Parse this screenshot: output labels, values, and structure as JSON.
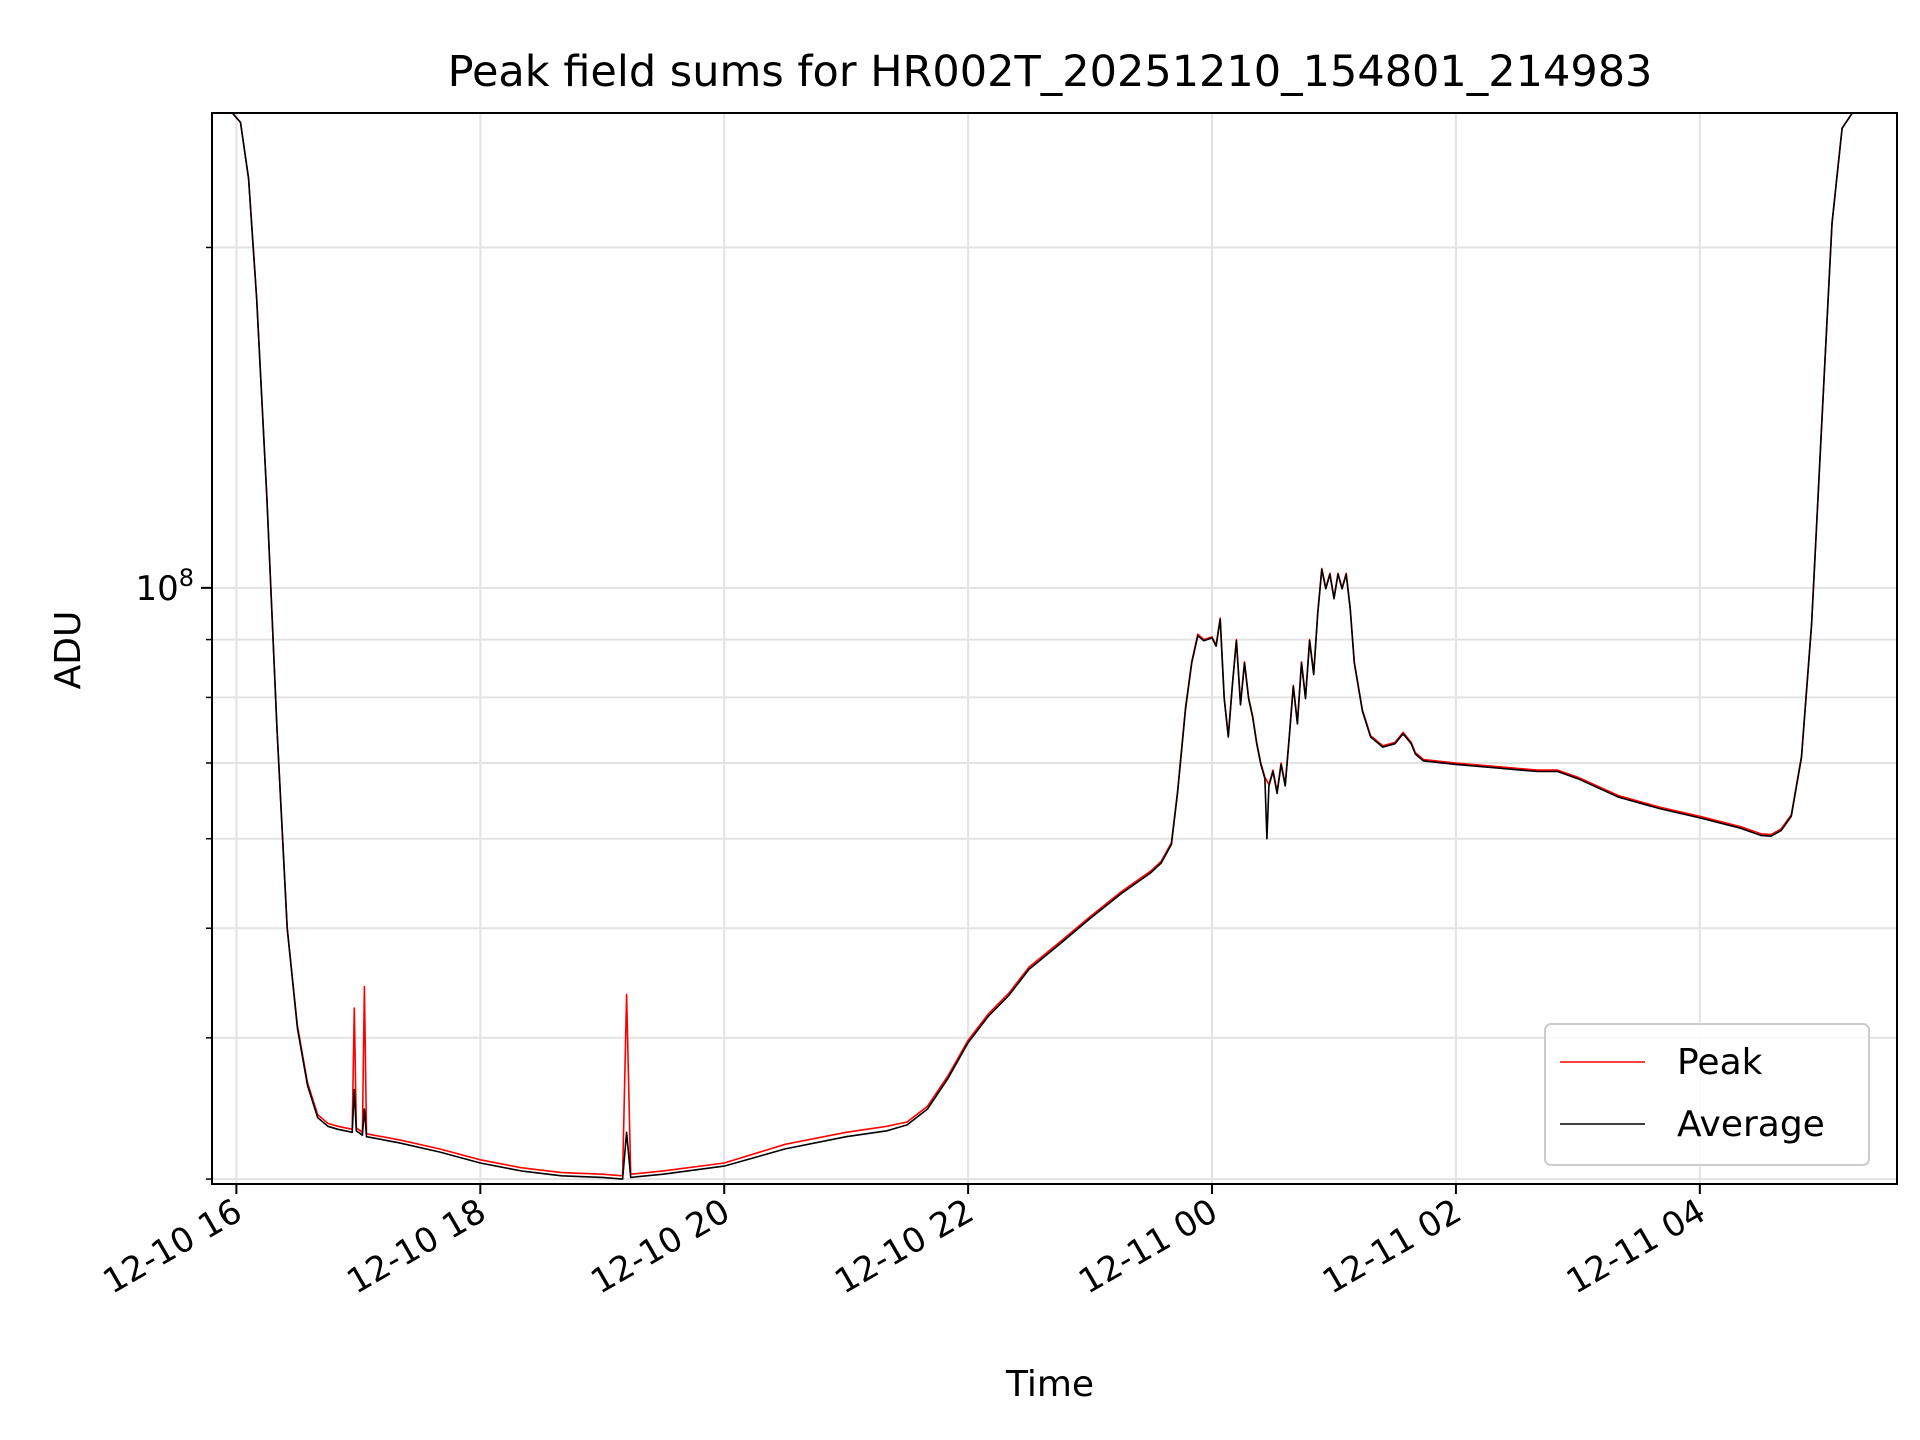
{
  "chart_data": {
    "type": "line",
    "title": "Peak field sums for HR002T_20251210_154801_214983",
    "xlabel": "Time",
    "ylabel": "ADU",
    "y_scale": "log",
    "y_tick_labels": [
      {
        "value": 100000000,
        "base": "10",
        "exp": "8"
      }
    ],
    "y_minor_ticks": [
      30000000,
      40000000,
      50000000,
      60000000,
      70000000,
      80000000,
      90000000,
      200000000
    ],
    "x_ticks": [
      {
        "t": "2025-12-10 16:00",
        "label": "12-10 16"
      },
      {
        "t": "2025-12-10 18:00",
        "label": "12-10 18"
      },
      {
        "t": "2025-12-10 20:00",
        "label": "12-10 20"
      },
      {
        "t": "2025-12-10 22:00",
        "label": "12-10 22"
      },
      {
        "t": "2025-12-11 00:00",
        "label": "12-11 00"
      },
      {
        "t": "2025-12-11 02:00",
        "label": "12-11 02"
      },
      {
        "t": "2025-12-11 04:00",
        "label": "12-11 04"
      }
    ],
    "xlim": [
      "2025-12-10 15:48",
      "2025-12-11 05:37"
    ],
    "ylim": [
      29700000,
      263000000
    ],
    "grid": true,
    "legend_position": "lower-right",
    "series": [
      {
        "name": "Peak",
        "color": "#ff0000",
        "points": [
          [
            "2025-12-10 15:48",
            263000000
          ],
          [
            "2025-12-10 15:58",
            263000000
          ],
          [
            "2025-12-10 16:02",
            258000000
          ],
          [
            "2025-12-10 16:06",
            230000000
          ],
          [
            "2025-12-10 16:10",
            180000000
          ],
          [
            "2025-12-10 16:15",
            120000000
          ],
          [
            "2025-12-10 16:20",
            75000000
          ],
          [
            "2025-12-10 16:25",
            50000000
          ],
          [
            "2025-12-10 16:30",
            41000000
          ],
          [
            "2025-12-10 16:35",
            36500000
          ],
          [
            "2025-12-10 16:40",
            34200000
          ],
          [
            "2025-12-10 16:45",
            33600000
          ],
          [
            "2025-12-10 16:50",
            33400000
          ],
          [
            "2025-12-10 16:57",
            33200000
          ],
          [
            "2025-12-10 16:58",
            42500000
          ],
          [
            "2025-12-10 16:59",
            33300000
          ],
          [
            "2025-12-10 17:02",
            33000000
          ],
          [
            "2025-12-10 17:03",
            44400000
          ],
          [
            "2025-12-10 17:04",
            32900000
          ],
          [
            "2025-12-10 17:20",
            32500000
          ],
          [
            "2025-12-10 17:40",
            31900000
          ],
          [
            "2025-12-10 18:00",
            31200000
          ],
          [
            "2025-12-10 18:20",
            30700000
          ],
          [
            "2025-12-10 18:40",
            30400000
          ],
          [
            "2025-12-10 19:00",
            30300000
          ],
          [
            "2025-12-10 19:10",
            30200000
          ],
          [
            "2025-12-10 19:12",
            43700000
          ],
          [
            "2025-12-10 19:14",
            30300000
          ],
          [
            "2025-12-10 19:30",
            30500000
          ],
          [
            "2025-12-10 20:00",
            31000000
          ],
          [
            "2025-12-10 20:30",
            32200000
          ],
          [
            "2025-12-10 21:00",
            33000000
          ],
          [
            "2025-12-10 21:20",
            33400000
          ],
          [
            "2025-12-10 21:30",
            33700000
          ],
          [
            "2025-12-10 21:40",
            34800000
          ],
          [
            "2025-12-10 21:50",
            37000000
          ],
          [
            "2025-12-10 22:00",
            39800000
          ],
          [
            "2025-12-10 22:10",
            42000000
          ],
          [
            "2025-12-10 22:20",
            43800000
          ],
          [
            "2025-12-10 22:30",
            46200000
          ],
          [
            "2025-12-10 22:45",
            48600000
          ],
          [
            "2025-12-10 23:00",
            51200000
          ],
          [
            "2025-12-10 23:15",
            53800000
          ],
          [
            "2025-12-10 23:30",
            56200000
          ],
          [
            "2025-12-10 23:35",
            57300000
          ],
          [
            "2025-12-10 23:40",
            59500000
          ],
          [
            "2025-12-10 23:43",
            66000000
          ],
          [
            "2025-12-10 23:47",
            78500000
          ],
          [
            "2025-12-10 23:50",
            86000000
          ],
          [
            "2025-12-10 23:53",
            91000000
          ],
          [
            "2025-12-10 23:56",
            90000000
          ],
          [
            "2025-12-11 00:00",
            90500000
          ],
          [
            "2025-12-11 00:02",
            89000000
          ],
          [
            "2025-12-11 00:04",
            94000000
          ],
          [
            "2025-12-11 00:06",
            80000000
          ],
          [
            "2025-12-11 00:08",
            74000000
          ],
          [
            "2025-12-11 00:10",
            82000000
          ],
          [
            "2025-12-11 00:12",
            90000000
          ],
          [
            "2025-12-11 00:14",
            79000000
          ],
          [
            "2025-12-11 00:16",
            86000000
          ],
          [
            "2025-12-11 00:18",
            80000000
          ],
          [
            "2025-12-11 00:20",
            77000000
          ],
          [
            "2025-12-11 00:22",
            73000000
          ],
          [
            "2025-12-11 00:24",
            70000000
          ],
          [
            "2025-12-11 00:26",
            68000000
          ],
          [
            "2025-12-11 00:28",
            67000000
          ],
          [
            "2025-12-11 00:30",
            69000000
          ],
          [
            "2025-12-11 00:32",
            66000000
          ],
          [
            "2025-12-11 00:34",
            70000000
          ],
          [
            "2025-12-11 00:36",
            67000000
          ],
          [
            "2025-12-11 00:38",
            74000000
          ],
          [
            "2025-12-11 00:40",
            82000000
          ],
          [
            "2025-12-11 00:42",
            76000000
          ],
          [
            "2025-12-11 00:44",
            86000000
          ],
          [
            "2025-12-11 00:46",
            80000000
          ],
          [
            "2025-12-11 00:48",
            90000000
          ],
          [
            "2025-12-11 00:50",
            84000000
          ],
          [
            "2025-12-11 00:52",
            95000000
          ],
          [
            "2025-12-11 00:54",
            104000000
          ],
          [
            "2025-12-11 00:56",
            100000000
          ],
          [
            "2025-12-11 00:58",
            103000000
          ],
          [
            "2025-12-11 01:00",
            98000000
          ],
          [
            "2025-12-11 01:02",
            103000000
          ],
          [
            "2025-12-11 01:04",
            100000000
          ],
          [
            "2025-12-11 01:06",
            103000000
          ],
          [
            "2025-12-11 01:08",
            96000000
          ],
          [
            "2025-12-11 01:10",
            86000000
          ],
          [
            "2025-12-11 01:14",
            78000000
          ],
          [
            "2025-12-11 01:18",
            74000000
          ],
          [
            "2025-12-11 01:24",
            72500000
          ],
          [
            "2025-12-11 01:30",
            73000000
          ],
          [
            "2025-12-11 01:34",
            74500000
          ],
          [
            "2025-12-11 01:38",
            73000000
          ],
          [
            "2025-12-11 01:40",
            71500000
          ],
          [
            "2025-12-11 01:44",
            70500000
          ],
          [
            "2025-12-11 02:00",
            70000000
          ],
          [
            "2025-12-11 02:20",
            69500000
          ],
          [
            "2025-12-11 02:40",
            69000000
          ],
          [
            "2025-12-11 02:50",
            69000000
          ],
          [
            "2025-12-11 03:00",
            68000000
          ],
          [
            "2025-12-11 03:20",
            65500000
          ],
          [
            "2025-12-11 03:40",
            64000000
          ],
          [
            "2025-12-11 04:00",
            62800000
          ],
          [
            "2025-12-11 04:20",
            61500000
          ],
          [
            "2025-12-11 04:30",
            60600000
          ],
          [
            "2025-12-11 04:35",
            60500000
          ],
          [
            "2025-12-11 04:40",
            61200000
          ],
          [
            "2025-12-11 04:45",
            63000000
          ],
          [
            "2025-12-11 04:50",
            71000000
          ],
          [
            "2025-12-11 04:55",
            93000000
          ],
          [
            "2025-12-11 05:00",
            140000000
          ],
          [
            "2025-12-11 05:05",
            210000000
          ],
          [
            "2025-12-11 05:10",
            255000000
          ],
          [
            "2025-12-11 05:15",
            263000000
          ],
          [
            "2025-12-11 05:37",
            263000000
          ]
        ]
      },
      {
        "name": "Average",
        "color": "#000000",
        "points": [
          [
            "2025-12-10 15:48",
            263000000
          ],
          [
            "2025-12-10 15:58",
            263000000
          ],
          [
            "2025-12-10 16:02",
            258000000
          ],
          [
            "2025-12-10 16:06",
            230000000
          ],
          [
            "2025-12-10 16:10",
            180000000
          ],
          [
            "2025-12-10 16:15",
            120000000
          ],
          [
            "2025-12-10 16:20",
            75000000
          ],
          [
            "2025-12-10 16:25",
            50000000
          ],
          [
            "2025-12-10 16:30",
            40800000
          ],
          [
            "2025-12-10 16:35",
            36300000
          ],
          [
            "2025-12-10 16:40",
            34000000
          ],
          [
            "2025-12-10 16:45",
            33400000
          ],
          [
            "2025-12-10 16:50",
            33200000
          ],
          [
            "2025-12-10 16:57",
            33000000
          ],
          [
            "2025-12-10 16:58",
            36000000
          ],
          [
            "2025-12-10 16:59",
            33100000
          ],
          [
            "2025-12-10 17:02",
            32800000
          ],
          [
            "2025-12-10 17:03",
            34600000
          ],
          [
            "2025-12-10 17:04",
            32700000
          ],
          [
            "2025-12-10 17:20",
            32300000
          ],
          [
            "2025-12-10 17:40",
            31700000
          ],
          [
            "2025-12-10 18:00",
            31000000
          ],
          [
            "2025-12-10 18:20",
            30500000
          ],
          [
            "2025-12-10 18:40",
            30200000
          ],
          [
            "2025-12-10 19:00",
            30100000
          ],
          [
            "2025-12-10 19:10",
            30000000
          ],
          [
            "2025-12-10 19:12",
            33000000
          ],
          [
            "2025-12-10 19:14",
            30100000
          ],
          [
            "2025-12-10 19:30",
            30300000
          ],
          [
            "2025-12-10 20:00",
            30800000
          ],
          [
            "2025-12-10 20:30",
            31900000
          ],
          [
            "2025-12-10 21:00",
            32700000
          ],
          [
            "2025-12-10 21:20",
            33100000
          ],
          [
            "2025-12-10 21:30",
            33500000
          ],
          [
            "2025-12-10 21:40",
            34600000
          ],
          [
            "2025-12-10 21:50",
            36800000
          ],
          [
            "2025-12-10 22:00",
            39600000
          ],
          [
            "2025-12-10 22:10",
            41800000
          ],
          [
            "2025-12-10 22:20",
            43600000
          ],
          [
            "2025-12-10 22:30",
            46000000
          ],
          [
            "2025-12-10 22:45",
            48400000
          ],
          [
            "2025-12-10 23:00",
            51000000
          ],
          [
            "2025-12-10 23:15",
            53600000
          ],
          [
            "2025-12-10 23:30",
            56000000
          ],
          [
            "2025-12-10 23:35",
            57100000
          ],
          [
            "2025-12-10 23:40",
            59300000
          ],
          [
            "2025-12-10 23:43",
            65800000
          ],
          [
            "2025-12-10 23:47",
            78200000
          ],
          [
            "2025-12-10 23:50",
            85800000
          ],
          [
            "2025-12-10 23:53",
            90700000
          ],
          [
            "2025-12-10 23:56",
            89800000
          ],
          [
            "2025-12-11 00:00",
            90300000
          ],
          [
            "2025-12-11 00:02",
            88800000
          ],
          [
            "2025-12-11 00:04",
            93800000
          ],
          [
            "2025-12-11 00:06",
            79800000
          ],
          [
            "2025-12-11 00:08",
            73800000
          ],
          [
            "2025-12-11 00:10",
            81800000
          ],
          [
            "2025-12-11 00:12",
            89800000
          ],
          [
            "2025-12-11 00:14",
            78800000
          ],
          [
            "2025-12-11 00:16",
            85800000
          ],
          [
            "2025-12-11 00:18",
            79800000
          ],
          [
            "2025-12-11 00:20",
            76800000
          ],
          [
            "2025-12-11 00:22",
            72800000
          ],
          [
            "2025-12-11 00:24",
            69800000
          ],
          [
            "2025-12-11 00:26",
            67800000
          ],
          [
            "2025-12-11 00:27",
            60000000
          ],
          [
            "2025-12-11 00:28",
            66800000
          ],
          [
            "2025-12-11 00:30",
            68800000
          ],
          [
            "2025-12-11 00:32",
            65800000
          ],
          [
            "2025-12-11 00:34",
            69800000
          ],
          [
            "2025-12-11 00:36",
            66800000
          ],
          [
            "2025-12-11 00:38",
            73800000
          ],
          [
            "2025-12-11 00:40",
            81800000
          ],
          [
            "2025-12-11 00:42",
            75800000
          ],
          [
            "2025-12-11 00:44",
            85800000
          ],
          [
            "2025-12-11 00:46",
            79800000
          ],
          [
            "2025-12-11 00:48",
            89800000
          ],
          [
            "2025-12-11 00:50",
            83800000
          ],
          [
            "2025-12-11 00:52",
            94800000
          ],
          [
            "2025-12-11 00:54",
            103800000
          ],
          [
            "2025-12-11 00:56",
            99800000
          ],
          [
            "2025-12-11 00:58",
            102800000
          ],
          [
            "2025-12-11 01:00",
            97800000
          ],
          [
            "2025-12-11 01:02",
            102800000
          ],
          [
            "2025-12-11 01:04",
            99800000
          ],
          [
            "2025-12-11 01:06",
            102800000
          ],
          [
            "2025-12-11 01:08",
            95800000
          ],
          [
            "2025-12-11 01:10",
            85800000
          ],
          [
            "2025-12-11 01:14",
            77800000
          ],
          [
            "2025-12-11 01:18",
            73800000
          ],
          [
            "2025-12-11 01:24",
            72300000
          ],
          [
            "2025-12-11 01:30",
            72800000
          ],
          [
            "2025-12-11 01:34",
            74300000
          ],
          [
            "2025-12-11 01:38",
            72800000
          ],
          [
            "2025-12-11 01:40",
            71300000
          ],
          [
            "2025-12-11 01:44",
            70300000
          ],
          [
            "2025-12-11 02:00",
            69800000
          ],
          [
            "2025-12-11 02:20",
            69300000
          ],
          [
            "2025-12-11 02:40",
            68800000
          ],
          [
            "2025-12-11 02:50",
            68800000
          ],
          [
            "2025-12-11 03:00",
            67800000
          ],
          [
            "2025-12-11 03:20",
            65300000
          ],
          [
            "2025-12-11 03:40",
            63800000
          ],
          [
            "2025-12-11 04:00",
            62600000
          ],
          [
            "2025-12-11 04:20",
            61300000
          ],
          [
            "2025-12-11 04:30",
            60400000
          ],
          [
            "2025-12-11 04:35",
            60300000
          ],
          [
            "2025-12-11 04:40",
            61000000
          ],
          [
            "2025-12-11 04:45",
            62800000
          ],
          [
            "2025-12-11 04:50",
            70800000
          ],
          [
            "2025-12-11 04:55",
            92800000
          ],
          [
            "2025-12-11 05:00",
            140000000
          ],
          [
            "2025-12-11 05:05",
            210000000
          ],
          [
            "2025-12-11 05:10",
            255000000
          ],
          [
            "2025-12-11 05:15",
            263000000
          ],
          [
            "2025-12-11 05:37",
            263000000
          ]
        ]
      }
    ]
  }
}
